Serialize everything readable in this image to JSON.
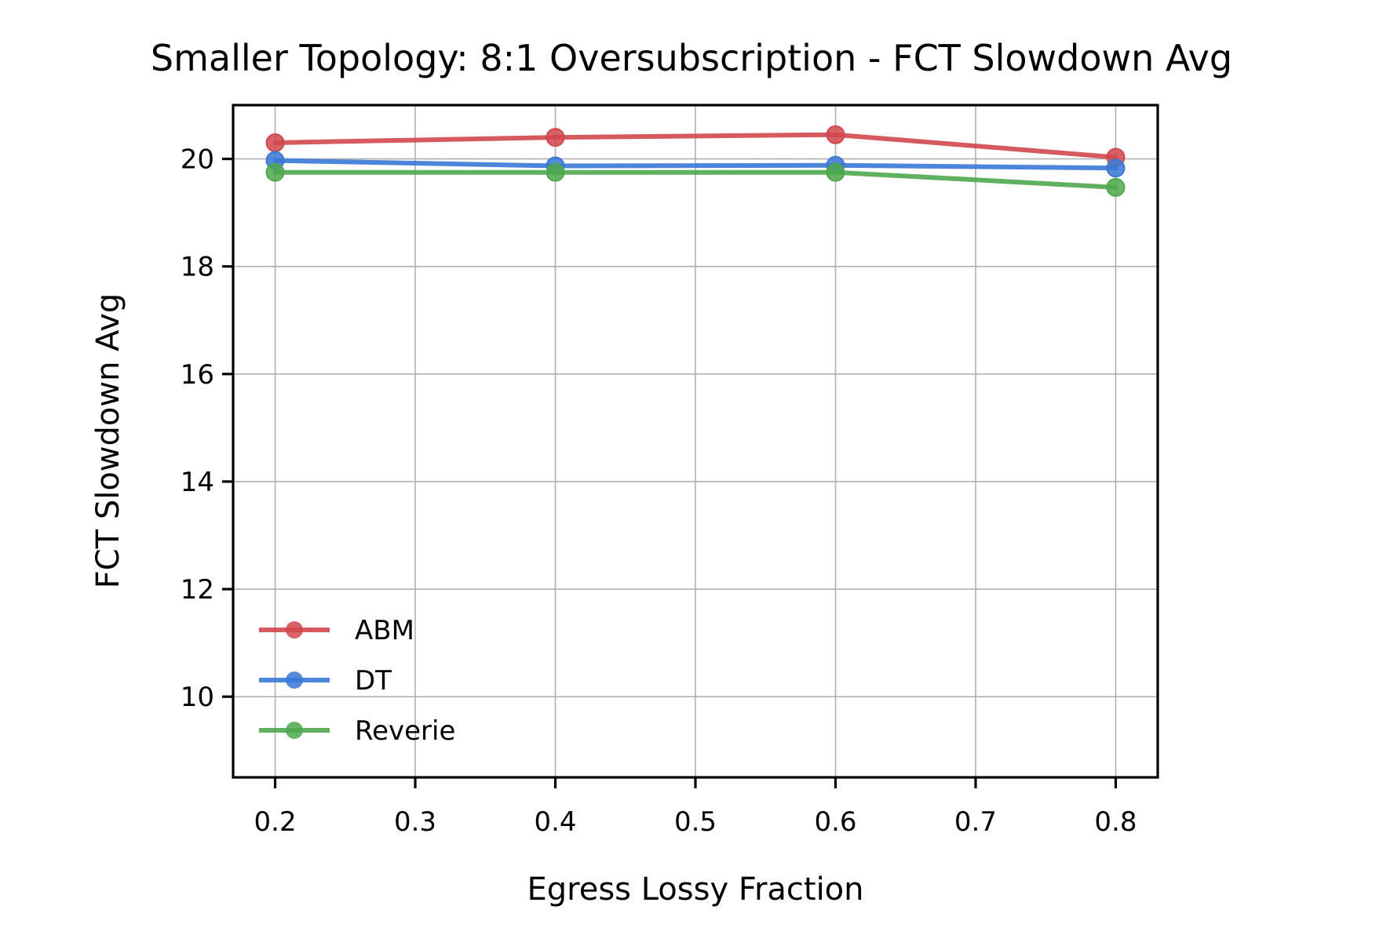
{
  "chart_data": {
    "type": "line",
    "title": "Smaller Topology: 8:1 Oversubscription - FCT Slowdown Avg",
    "xlabel": "Egress Lossy Fraction",
    "ylabel": "FCT Slowdown Avg",
    "x": [
      0.2,
      0.4,
      0.6,
      0.8
    ],
    "xlim": [
      0.17,
      0.83
    ],
    "ylim": [
      8.5,
      21.0
    ],
    "xticks": [
      0.2,
      0.3,
      0.4,
      0.5,
      0.6,
      0.7,
      0.8
    ],
    "xtick_labels": [
      "0.2",
      "0.3",
      "0.4",
      "0.5",
      "0.6",
      "0.7",
      "0.8"
    ],
    "yticks": [
      10,
      12,
      14,
      16,
      18,
      20
    ],
    "ytick_labels": [
      "10",
      "12",
      "14",
      "16",
      "18",
      "20"
    ],
    "grid": true,
    "legend_position": "lower-left",
    "series": [
      {
        "name": "ABM",
        "color": "#d0484d",
        "values": [
          20.3,
          20.4,
          20.45,
          20.03
        ]
      },
      {
        "name": "DT",
        "color": "#3a78d6",
        "values": [
          19.97,
          19.87,
          19.88,
          19.83
        ]
      },
      {
        "name": "Reverie",
        "color": "#4ea84e",
        "values": [
          19.75,
          19.75,
          19.75,
          19.47
        ]
      }
    ]
  }
}
